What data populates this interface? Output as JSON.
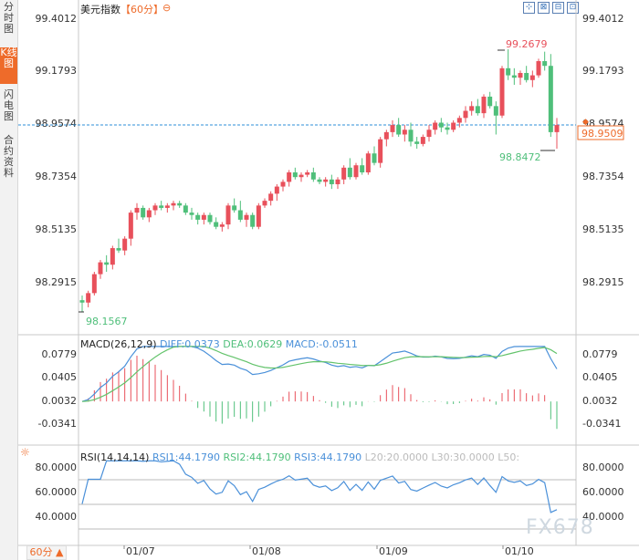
{
  "sidebar": {
    "tabs": [
      {
        "label": "分时图",
        "active": false
      },
      {
        "label": "K线图",
        "active": true
      },
      {
        "label": "闪电图",
        "active": false
      },
      {
        "label": "合约资料",
        "active": false
      }
    ]
  },
  "header": {
    "title": "美元指数",
    "period": "【60分】",
    "collapse_symbol": "⊖",
    "tools": [
      "⊹",
      "⊠",
      "⊟",
      "⊡"
    ]
  },
  "colors": {
    "up": "#e8505b",
    "down": "#4fbf7a",
    "diff": "#4a90d9",
    "dea": "#63c36b",
    "accent": "#ee6b2a",
    "current_line": "#2d8fd8"
  },
  "price_axis": {
    "ticks": [
      "99.4012",
      "99.1793",
      "98.9574",
      "98.7354",
      "98.5135",
      "98.2915"
    ],
    "current_value": "98.9509"
  },
  "annotations": {
    "high": "99.2679",
    "low_after_high": "98.8472",
    "period_low": "98.1567"
  },
  "x_axis": {
    "labels": [
      "01/07",
      "01/08",
      "01/09",
      "01/10"
    ]
  },
  "macd": {
    "legend_title": "MACD(26,12,9)",
    "diff": "DIFF:0.0373",
    "dea": "DEA:0.0629",
    "macd": "MACD:-0.0511",
    "ticks": [
      "0.0779",
      "0.0405",
      "0.0032",
      "-0.0341"
    ]
  },
  "rsi": {
    "legend_title": "RSI(14,14,14)",
    "rsi1": "RSI1:44.1790",
    "rsi2": "RSI2:44.1790",
    "rsi3": "RSI3:44.1790",
    "l20": "L20:20.0000",
    "l30": "L30:30.0000",
    "l50": "L50:",
    "ticks": [
      "80.0000",
      "60.0000",
      "40.0000"
    ],
    "right_ticks": [
      "80.0000",
      "60.0000",
      "40.0000"
    ]
  },
  "footer": {
    "period_select": "60分 ▲"
  },
  "watermark": "FX678",
  "chart_data": {
    "type": "candlestick",
    "title": "美元指数【60分】",
    "ylim": [
      98.1,
      99.45
    ],
    "dates": [
      "01/07",
      "01/08",
      "01/09",
      "01/10"
    ],
    "ohlc": [
      [
        98.21,
        98.23,
        98.16,
        98.2
      ],
      [
        98.2,
        98.25,
        98.18,
        98.24
      ],
      [
        98.24,
        98.33,
        98.23,
        98.32
      ],
      [
        98.32,
        98.38,
        98.3,
        98.37
      ],
      [
        98.37,
        98.4,
        98.33,
        98.36
      ],
      [
        98.36,
        98.44,
        98.34,
        98.43
      ],
      [
        98.43,
        98.47,
        98.41,
        98.42
      ],
      [
        98.42,
        98.48,
        98.4,
        98.47
      ],
      [
        98.47,
        98.59,
        98.44,
        98.58
      ],
      [
        98.58,
        98.62,
        98.55,
        98.6
      ],
      [
        98.6,
        98.61,
        98.55,
        98.56
      ],
      [
        98.56,
        98.6,
        98.54,
        98.59
      ],
      [
        98.59,
        98.62,
        98.57,
        98.61
      ],
      [
        98.61,
        98.63,
        98.59,
        98.6
      ],
      [
        98.6,
        98.62,
        98.58,
        98.61
      ],
      [
        98.61,
        98.63,
        98.59,
        98.62
      ],
      [
        98.62,
        98.63,
        98.6,
        98.61
      ],
      [
        98.61,
        98.62,
        98.57,
        98.58
      ],
      [
        98.58,
        98.6,
        98.55,
        98.57
      ],
      [
        98.57,
        98.58,
        98.53,
        98.55
      ],
      [
        98.55,
        98.58,
        98.53,
        98.57
      ],
      [
        98.57,
        98.58,
        98.53,
        98.54
      ],
      [
        98.54,
        98.56,
        98.51,
        98.52
      ],
      [
        98.52,
        98.54,
        98.5,
        98.53
      ],
      [
        98.53,
        98.62,
        98.51,
        98.61
      ],
      [
        98.61,
        98.64,
        98.58,
        98.59
      ],
      [
        98.59,
        98.63,
        98.54,
        98.55
      ],
      [
        98.55,
        98.58,
        98.52,
        98.57
      ],
      [
        98.57,
        98.58,
        98.51,
        98.52
      ],
      [
        98.52,
        98.62,
        98.51,
        98.61
      ],
      [
        98.61,
        98.64,
        98.6,
        98.63
      ],
      [
        98.63,
        98.67,
        98.61,
        98.66
      ],
      [
        98.66,
        98.7,
        98.63,
        98.69
      ],
      [
        98.69,
        98.72,
        98.67,
        98.71
      ],
      [
        98.71,
        98.76,
        98.69,
        98.75
      ],
      [
        98.75,
        98.77,
        98.72,
        98.73
      ],
      [
        98.73,
        98.75,
        98.71,
        98.74
      ],
      [
        98.74,
        98.76,
        98.73,
        98.75
      ],
      [
        98.75,
        98.77,
        98.71,
        98.72
      ],
      [
        98.72,
        98.73,
        98.7,
        98.71
      ],
      [
        98.71,
        98.73,
        98.69,
        98.72
      ],
      [
        98.72,
        98.74,
        98.68,
        98.7
      ],
      [
        98.7,
        98.73,
        98.68,
        98.72
      ],
      [
        98.72,
        98.78,
        98.7,
        98.77
      ],
      [
        98.77,
        98.81,
        98.72,
        98.73
      ],
      [
        98.73,
        98.79,
        98.72,
        98.78
      ],
      [
        98.78,
        98.81,
        98.74,
        98.75
      ],
      [
        98.75,
        98.84,
        98.74,
        98.83
      ],
      [
        98.83,
        98.86,
        98.78,
        98.79
      ],
      [
        98.79,
        98.9,
        98.77,
        98.89
      ],
      [
        98.89,
        98.93,
        98.86,
        98.92
      ],
      [
        98.92,
        98.97,
        98.9,
        98.95
      ],
      [
        98.95,
        98.98,
        98.9,
        98.91
      ],
      [
        98.91,
        98.95,
        98.88,
        98.93
      ],
      [
        98.93,
        98.96,
        98.86,
        98.88
      ],
      [
        98.88,
        98.9,
        98.85,
        98.87
      ],
      [
        98.87,
        98.91,
        98.86,
        98.9
      ],
      [
        98.9,
        98.95,
        98.88,
        98.93
      ],
      [
        98.93,
        98.97,
        98.91,
        98.96
      ],
      [
        98.96,
        98.98,
        98.92,
        98.94
      ],
      [
        98.94,
        98.96,
        98.91,
        98.93
      ],
      [
        98.93,
        98.97,
        98.92,
        98.96
      ],
      [
        98.96,
        98.99,
        98.94,
        98.98
      ],
      [
        98.98,
        99.03,
        98.96,
        99.01
      ],
      [
        99.01,
        99.05,
        98.99,
        99.03
      ],
      [
        99.03,
        99.06,
        98.99,
        99.0
      ],
      [
        99.0,
        99.08,
        98.98,
        99.07
      ],
      [
        99.07,
        99.09,
        99.02,
        99.03
      ],
      [
        99.03,
        99.05,
        98.91,
        98.99
      ],
      [
        98.99,
        99.2,
        98.98,
        99.19
      ],
      [
        99.19,
        99.27,
        99.14,
        99.16
      ],
      [
        99.16,
        99.19,
        99.12,
        99.15
      ],
      [
        99.15,
        99.18,
        99.12,
        99.17
      ],
      [
        99.17,
        99.2,
        99.13,
        99.14
      ],
      [
        99.14,
        99.18,
        99.11,
        99.16
      ],
      [
        99.16,
        99.23,
        99.15,
        99.22
      ],
      [
        99.22,
        99.26,
        99.18,
        99.2
      ],
      [
        99.2,
        99.25,
        98.9,
        98.92
      ],
      [
        98.92,
        98.98,
        98.85,
        98.95
      ]
    ],
    "macd_diff_end": 0.0373,
    "macd_dea_end": 0.0629,
    "macd_hist_end": -0.0511,
    "rsi_end": 44.179
  }
}
